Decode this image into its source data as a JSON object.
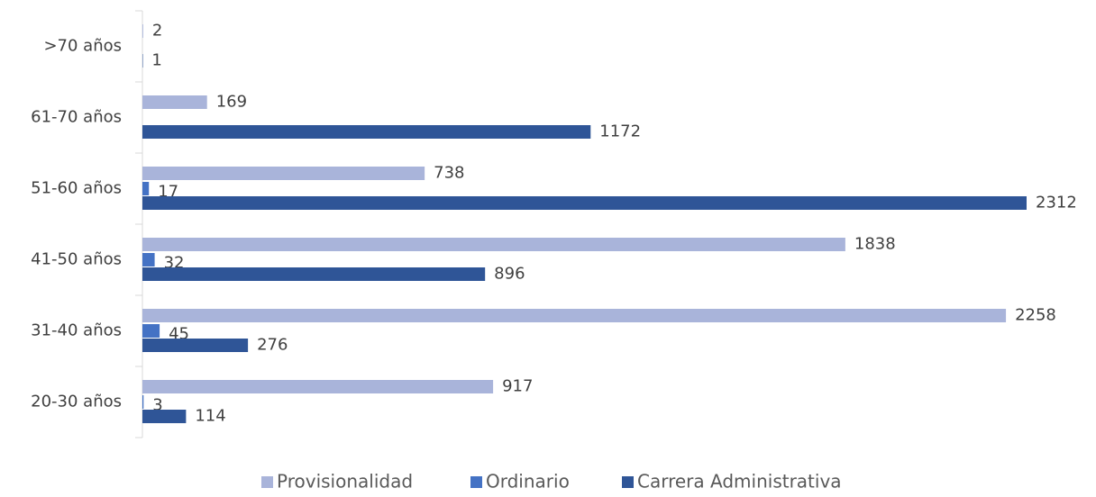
{
  "chart_data": {
    "type": "bar",
    "orientation": "horizontal",
    "categories": [
      ">70 años",
      "61-70 años",
      "51-60 años",
      "41-50 años",
      "31-40 años",
      "20-30 años"
    ],
    "series": [
      {
        "name": "Provisionalidad",
        "color": "#a9b4da",
        "values": [
          2,
          169,
          738,
          1838,
          2258,
          917
        ]
      },
      {
        "name": "Ordinario",
        "color": "#4472c4",
        "values": [
          null,
          null,
          17,
          32,
          45,
          3
        ]
      },
      {
        "name": "Carrera Administrativa",
        "color": "#2f5597",
        "values": [
          1,
          1172,
          2312,
          896,
          276,
          114
        ]
      }
    ],
    "legend": "bottom"
  }
}
